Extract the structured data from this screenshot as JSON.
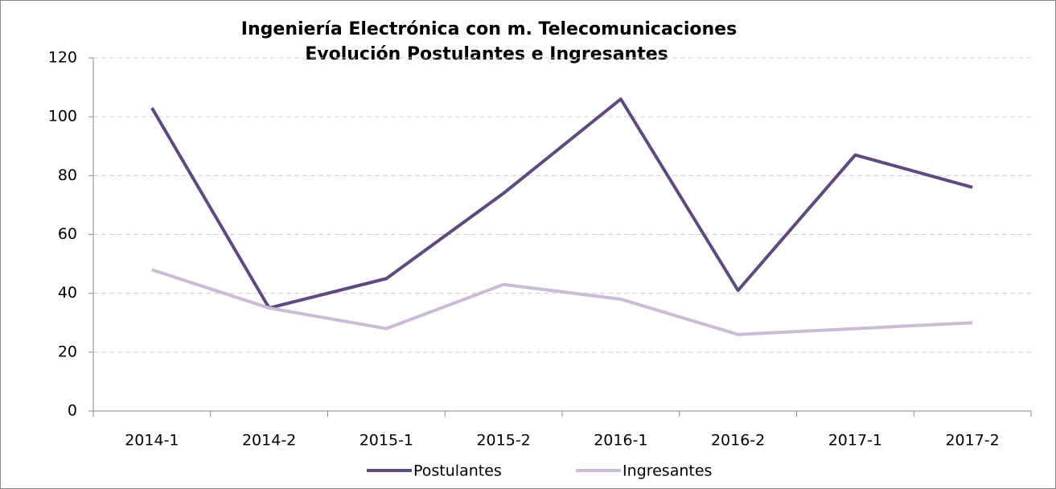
{
  "chart_data": {
    "type": "line",
    "title": "Ingeniería Electrónica con m. Telecomunicaciones",
    "subtitle": "Evolución Postulantes e Ingresantes",
    "categories": [
      "2014-1",
      "2014-2",
      "2015-1",
      "2015-2",
      "2016-1",
      "2016-2",
      "2017-1",
      "2017-2"
    ],
    "series": [
      {
        "name": "Postulantes",
        "color": "#5e4a7c",
        "values": [
          103,
          35,
          45,
          74,
          106,
          41,
          87,
          76
        ]
      },
      {
        "name": "Ingresantes",
        "color": "#c8bcd6",
        "values": [
          48,
          35,
          28,
          43,
          38,
          26,
          28,
          30
        ]
      }
    ],
    "ylim": [
      0,
      120
    ],
    "yticks": [
      0,
      20,
      40,
      60,
      80,
      100,
      120
    ],
    "grid": true,
    "legend": "bottom"
  }
}
